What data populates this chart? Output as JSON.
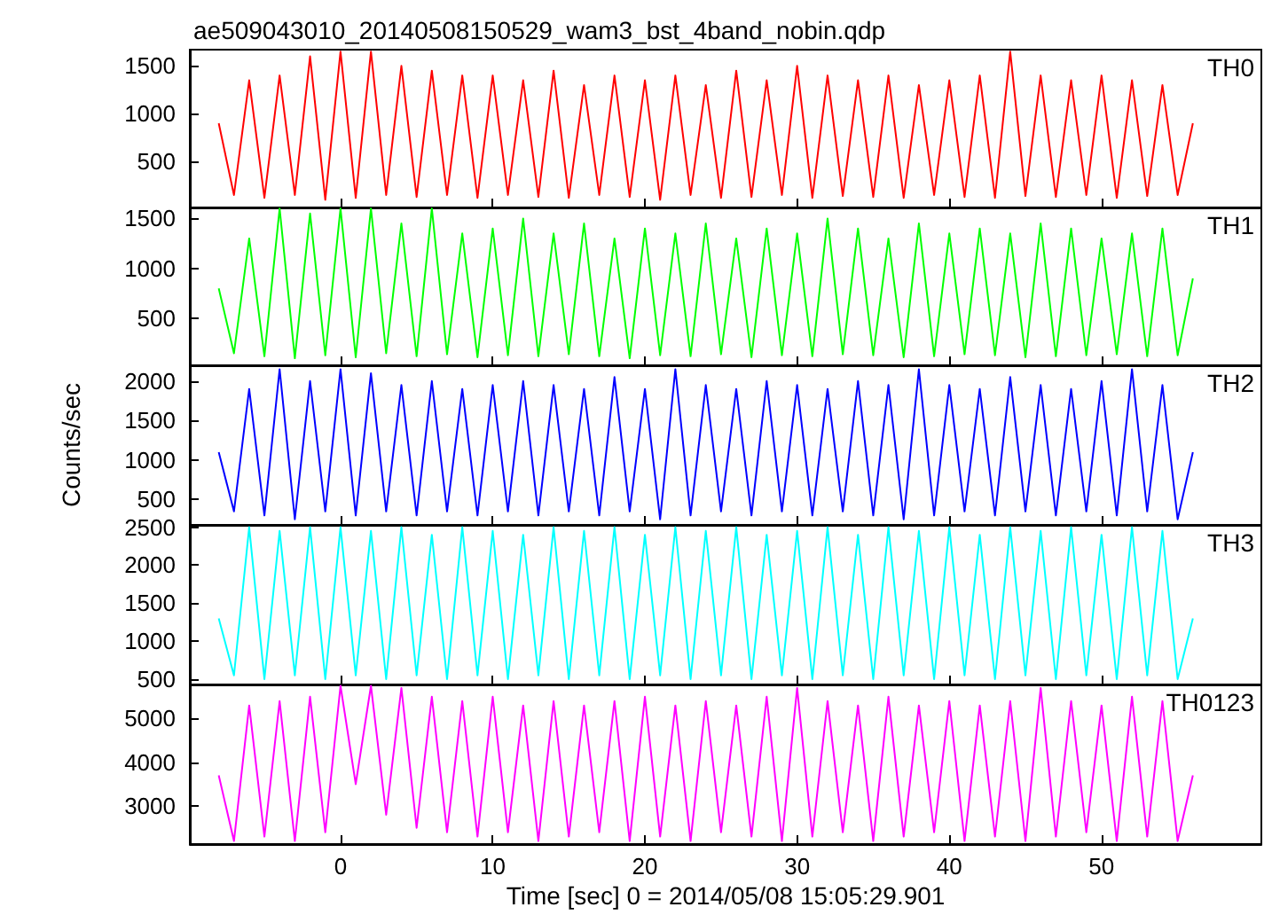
{
  "chart_data": [
    {
      "type": "line",
      "title": "ae509043010_20140508150529_wam3_bst_4band_nobin.qdp",
      "annotations": [
        "TH0"
      ],
      "color": "#ff0000",
      "marker": "none",
      "tick_labels": "y",
      "xlim": [
        -9.9,
        60.5
      ],
      "xticks": [
        0,
        10,
        20,
        30,
        40,
        50
      ],
      "ylim": [
        20,
        1670
      ],
      "yticks": [
        500,
        1000,
        1500
      ],
      "x": [
        -8,
        -7,
        -6,
        -5,
        -4,
        -3,
        -2,
        -1,
        0,
        1,
        2,
        3,
        4,
        5,
        6,
        7,
        8,
        9,
        10,
        11,
        12,
        13,
        14,
        15,
        16,
        17,
        18,
        19,
        20,
        21,
        22,
        23,
        24,
        25,
        26,
        27,
        28,
        29,
        30,
        31,
        32,
        33,
        34,
        35,
        36,
        37,
        38,
        39,
        40,
        41,
        42,
        43,
        44,
        45,
        46,
        47,
        48,
        49,
        50,
        51,
        52,
        53,
        54,
        55,
        56
      ],
      "values": [
        900,
        150,
        1350,
        120,
        1400,
        150,
        1600,
        100,
        1650,
        120,
        1650,
        150,
        1500,
        130,
        1450,
        150,
        1400,
        120,
        1400,
        150,
        1350,
        130,
        1450,
        120,
        1300,
        150,
        1400,
        130,
        1350,
        100,
        1400,
        150,
        1300,
        120,
        1450,
        130,
        1350,
        150,
        1500,
        120,
        1400,
        140,
        1350,
        130,
        1400,
        120,
        1300,
        150,
        1350,
        130,
        1400,
        120,
        1650,
        140,
        1400,
        130,
        1350,
        150,
        1400,
        120,
        1350,
        140,
        1300,
        150,
        900
      ]
    },
    {
      "type": "line",
      "annotations": [
        "TH1"
      ],
      "color": "#00ff00",
      "marker": "none",
      "tick_labels": "y",
      "xlim": [
        -9.9,
        60.5
      ],
      "xticks": [
        0,
        10,
        20,
        30,
        40,
        50
      ],
      "ylim": [
        30,
        1610
      ],
      "yticks": [
        500,
        1000,
        1500
      ],
      "x": [
        -8,
        -7,
        -6,
        -5,
        -4,
        -3,
        -2,
        -1,
        0,
        1,
        2,
        3,
        4,
        5,
        6,
        7,
        8,
        9,
        10,
        11,
        12,
        13,
        14,
        15,
        16,
        17,
        18,
        19,
        20,
        21,
        22,
        23,
        24,
        25,
        26,
        27,
        28,
        29,
        30,
        31,
        32,
        33,
        34,
        35,
        36,
        37,
        38,
        39,
        40,
        41,
        42,
        43,
        44,
        45,
        46,
        47,
        48,
        49,
        50,
        51,
        52,
        53,
        54,
        55,
        56
      ],
      "values": [
        800,
        150,
        1300,
        120,
        1600,
        100,
        1550,
        130,
        1600,
        110,
        1600,
        150,
        1450,
        120,
        1600,
        140,
        1350,
        110,
        1400,
        130,
        1500,
        120,
        1350,
        140,
        1450,
        120,
        1300,
        100,
        1400,
        130,
        1350,
        120,
        1450,
        140,
        1300,
        110,
        1400,
        130,
        1350,
        120,
        1500,
        140,
        1400,
        130,
        1300,
        110,
        1450,
        120,
        1350,
        140,
        1400,
        130,
        1350,
        110,
        1450,
        120,
        1400,
        130,
        1300,
        140,
        1350,
        120,
        1400,
        130,
        900
      ]
    },
    {
      "type": "line",
      "ylabel": "Counts/sec",
      "annotations": [
        "TH2"
      ],
      "color": "#0000ff",
      "marker": "none",
      "tick_labels": "y",
      "xlim": [
        -9.9,
        60.5
      ],
      "xticks": [
        0,
        10,
        20,
        30,
        40,
        50
      ],
      "ylim": [
        180,
        2200
      ],
      "yticks": [
        500,
        1000,
        1500,
        2000
      ],
      "x": [
        -8,
        -7,
        -6,
        -5,
        -4,
        -3,
        -2,
        -1,
        0,
        1,
        2,
        3,
        4,
        5,
        6,
        7,
        8,
        9,
        10,
        11,
        12,
        13,
        14,
        15,
        16,
        17,
        18,
        19,
        20,
        21,
        22,
        23,
        24,
        25,
        26,
        27,
        28,
        29,
        30,
        31,
        32,
        33,
        34,
        35,
        36,
        37,
        38,
        39,
        40,
        41,
        42,
        43,
        44,
        45,
        46,
        47,
        48,
        49,
        50,
        51,
        52,
        53,
        54,
        55,
        56
      ],
      "values": [
        1100,
        350,
        1900,
        300,
        2150,
        250,
        2000,
        350,
        2150,
        300,
        2100,
        350,
        1950,
        300,
        2000,
        350,
        1900,
        300,
        1950,
        350,
        2000,
        300,
        1950,
        350,
        1900,
        300,
        2050,
        350,
        1900,
        250,
        2150,
        300,
        1950,
        350,
        1900,
        300,
        2000,
        350,
        1950,
        300,
        1900,
        350,
        2000,
        300,
        1950,
        250,
        2150,
        300,
        1950,
        350,
        1900,
        300,
        2050,
        350,
        1950,
        300,
        1900,
        350,
        2000,
        300,
        2150,
        350,
        1950,
        250,
        1100
      ]
    },
    {
      "type": "line",
      "annotations": [
        "TH3"
      ],
      "color": "#00ffff",
      "marker": "none",
      "tick_labels": "y",
      "xlim": [
        -9.9,
        60.5
      ],
      "xticks": [
        0,
        10,
        20,
        30,
        40,
        50
      ],
      "ylim": [
        430,
        2530
      ],
      "yticks": [
        500,
        1000,
        1500,
        2000,
        2500
      ],
      "x": [
        -8,
        -7,
        -6,
        -5,
        -4,
        -3,
        -2,
        -1,
        0,
        1,
        2,
        3,
        4,
        5,
        6,
        7,
        8,
        9,
        10,
        11,
        12,
        13,
        14,
        15,
        16,
        17,
        18,
        19,
        20,
        21,
        22,
        23,
        24,
        25,
        26,
        27,
        28,
        29,
        30,
        31,
        32,
        33,
        34,
        35,
        36,
        37,
        38,
        39,
        40,
        41,
        42,
        43,
        44,
        45,
        46,
        47,
        48,
        49,
        50,
        51,
        52,
        53,
        54,
        55,
        56
      ],
      "values": [
        1300,
        550,
        2500,
        500,
        2450,
        550,
        2500,
        500,
        2500,
        550,
        2450,
        500,
        2500,
        550,
        2400,
        500,
        2500,
        550,
        2450,
        500,
        2400,
        550,
        2500,
        500,
        2450,
        550,
        2500,
        500,
        2400,
        550,
        2500,
        500,
        2450,
        550,
        2500,
        500,
        2400,
        550,
        2450,
        500,
        2500,
        550,
        2400,
        500,
        2500,
        550,
        2450,
        500,
        2500,
        550,
        2400,
        500,
        2500,
        550,
        2450,
        500,
        2500,
        550,
        2400,
        500,
        2500,
        550,
        2450,
        500,
        1300
      ]
    },
    {
      "type": "line",
      "xlabel": "Time [sec] 0 = 2014/05/08 15:05:29.901",
      "annotations": [
        "TH0123"
      ],
      "color": "#ff00ff",
      "marker": "none",
      "xlim": [
        -9.9,
        60.5
      ],
      "xticks": [
        0,
        10,
        20,
        30,
        40,
        50
      ],
      "ylim": [
        2130,
        5780
      ],
      "yticks": [
        3000,
        4000,
        5000
      ],
      "x": [
        -8,
        -7,
        -6,
        -5,
        -4,
        -3,
        -2,
        -1,
        0,
        1,
        2,
        3,
        4,
        5,
        6,
        7,
        8,
        9,
        10,
        11,
        12,
        13,
        14,
        15,
        16,
        17,
        18,
        19,
        20,
        21,
        22,
        23,
        24,
        25,
        26,
        27,
        28,
        29,
        30,
        31,
        32,
        33,
        34,
        35,
        36,
        37,
        38,
        39,
        40,
        41,
        42,
        43,
        44,
        45,
        46,
        47,
        48,
        49,
        50,
        51,
        52,
        53,
        54,
        55,
        56
      ],
      "values": [
        3700,
        2200,
        5300,
        2300,
        5400,
        2200,
        5500,
        2400,
        5750,
        3500,
        5750,
        2800,
        5700,
        2500,
        5500,
        2400,
        5400,
        2300,
        5500,
        2400,
        5300,
        2200,
        5400,
        2300,
        5300,
        2400,
        5400,
        2200,
        5500,
        2300,
        5300,
        2200,
        5400,
        2400,
        5300,
        2300,
        5500,
        2200,
        5700,
        2300,
        5400,
        2400,
        5300,
        2200,
        5500,
        2300,
        5300,
        2400,
        5400,
        2200,
        5300,
        2300,
        5400,
        2200,
        5700,
        2300,
        5400,
        2400,
        5300,
        2200,
        5500,
        2300,
        5400,
        2200,
        3700
      ]
    }
  ]
}
